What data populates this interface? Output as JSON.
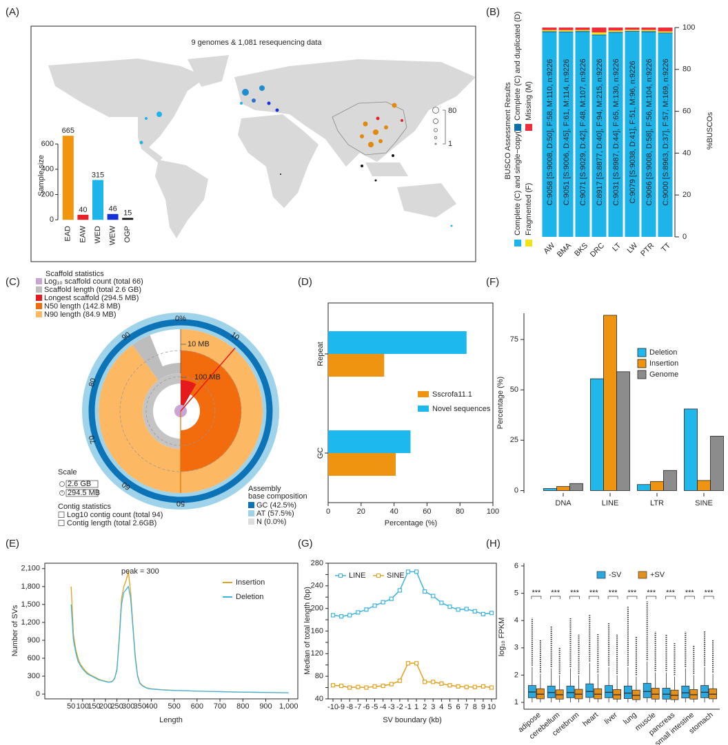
{
  "chart_data": [
    {
      "type": "map",
      "label": "(A)",
      "title": "9 genomes & 1,081 resequencing data",
      "size_legend": [
        80,
        1
      ]
    },
    {
      "type": "bar",
      "ylabel": "Sample size",
      "categories": [
        "EAD",
        "EAW",
        "WED",
        "WEW",
        "OGP"
      ],
      "values": [
        665,
        40,
        315,
        46,
        15
      ],
      "colors": [
        "#f0950c",
        "#e8202a",
        "#1db4ea",
        "#1432d8",
        "#111111"
      ],
      "ylim": [
        -15,
        715
      ],
      "yticks": [
        0,
        200,
        400,
        600
      ]
    },
    {
      "type": "stacked_bar",
      "label": "(B)",
      "legend_title": "BUSCO Assessment Results",
      "ylabel": "%BUSCOs",
      "categories": [
        "AW",
        "BMA",
        "BKS",
        "DRC",
        "LT",
        "LW",
        "PTR",
        "TT"
      ],
      "series": [
        {
          "name": "Complete (C) and single−copy(S)",
          "color": "#1db4ea",
          "values": [
            97.64,
            97.62,
            97.86,
            96.22,
            97.41,
            97.96,
            97.64,
            97.15
          ]
        },
        {
          "name": "Complete (C) and duplicated (D)",
          "color": "#0b6fa8",
          "values": [
            0.54,
            0.49,
            0.46,
            0.43,
            0.48,
            0.44,
            0.63,
            0.4
          ]
        },
        {
          "name": "Fragmented (F)",
          "color": "#f2e21a",
          "values": [
            0.63,
            0.66,
            0.52,
            1.02,
            0.7,
            0.55,
            0.61,
            0.62
          ]
        },
        {
          "name": "Missing (M)",
          "color": "#ee2c3a",
          "values": [
            1.19,
            1.24,
            1.16,
            2.33,
            1.41,
            1.04,
            1.13,
            1.83
          ]
        }
      ],
      "bar_labels": [
        "C:9058 [S:9008, D:50], F:58, M:110, n:9226",
        "C:9051 [S:9006, D:45], F:61, M:114, n:9226",
        "C:9071 [S:9029, D:42], F:48, M:107, n:9226",
        "C:8917 [S:8877, D:40], F:94, M:215, n:9226",
        "C:9031 [S:8987, D:44], F:65, M:130, n:9226",
        "C:9079 [S:9038, D:41], F:51, M:96, n:9226",
        "C:9066 [S:9008, D:58], F:56, M:104, n:9226",
        "C:9000 [S:8963, D:37], F:57, M:169, n:9226"
      ],
      "ylim": [
        0,
        100
      ],
      "yticks": [
        0,
        20,
        40,
        60,
        80,
        100
      ]
    },
    {
      "type": "snail",
      "label": "(C)",
      "legend_title": "Scaffold statistics",
      "legend": [
        {
          "name": "Log₁₀ scaffold count (total 66)",
          "color": "#c9a5d6"
        },
        {
          "name": "Scaffold length (total 2.6 GB)",
          "color": "#bdbdbd"
        },
        {
          "name": "Longest scaffold (294.5 MB)",
          "color": "#e41a1c"
        },
        {
          "name": "N50 length (142.8 MB)",
          "color": "#f26c0d"
        },
        {
          "name": "N90 length (84.9 MB)",
          "color": "#fdb863"
        }
      ],
      "scale_title": "Scale",
      "scale": [
        "2.6 GB",
        "294.5 MB"
      ],
      "contig_title": "Contig statistics",
      "contig": [
        "Log10 contig count (total 94)",
        "Contig length (total 2.6GB)"
      ],
      "composition_title": [
        "Assembly",
        "base composition"
      ],
      "composition": [
        {
          "name": "GC (42.5%)",
          "color": "#0b73b6"
        },
        {
          "name": "AT (57.5%)",
          "color": "#9fd3ea"
        },
        {
          "name": "N (0.0%)",
          "color": "#dddddd"
        }
      ],
      "radial_labels": [
        "10 MB",
        "100 MB"
      ],
      "ring_ticks": [
        {
          "value": 0,
          "label": "0%"
        },
        10,
        50,
        60,
        70,
        80,
        90
      ]
    },
    {
      "type": "hbar",
      "label": "(D)",
      "xlabel": "Percentage (%)",
      "categories": [
        "Repeat",
        "GC"
      ],
      "series": [
        {
          "name": "Sscrofa11.1",
          "color": "#ee9410",
          "values": [
            34,
            41
          ]
        },
        {
          "name": "Novel sequences",
          "color": "#1db8ee",
          "values": [
            84,
            50
          ]
        }
      ],
      "xlim": [
        0,
        100
      ],
      "xticks": [
        0,
        20,
        40,
        60,
        80,
        100
      ]
    },
    {
      "type": "grouped_bar",
      "label": "(F)",
      "ylabel": "Percentage (%)",
      "categories": [
        "DNA",
        "LINE",
        "LTR",
        "SINE"
      ],
      "series": [
        {
          "name": "Deletion",
          "color": "#22b7ea",
          "values": [
            1,
            55.5,
            3,
            40.5
          ]
        },
        {
          "name": "Insertion",
          "color": "#ee9410",
          "values": [
            2,
            87,
            4.5,
            5
          ]
        },
        {
          "name": "Genome",
          "color": "#8c8c8c",
          "values": [
            3.5,
            59,
            10,
            27
          ]
        }
      ],
      "ylim": [
        -1.2,
        88
      ],
      "yticks": [
        0,
        25,
        50,
        75
      ]
    },
    {
      "type": "line",
      "label": "(E)",
      "xlabel": "Length",
      "ylabel": "Number of SVs",
      "annotation": "peak = 300",
      "x": [
        50,
        60,
        70,
        80,
        90,
        100,
        110,
        120,
        130,
        140,
        150,
        160,
        170,
        180,
        190,
        200,
        210,
        220,
        230,
        240,
        250,
        260,
        270,
        280,
        290,
        300,
        310,
        320,
        330,
        340,
        350,
        360,
        370,
        380,
        390,
        400,
        450,
        500,
        550,
        600,
        650,
        700,
        750,
        800,
        850,
        900,
        950,
        1000
      ],
      "series": [
        {
          "name": "Insertion",
          "color": "#e3a01c",
          "values": [
            1800,
            1000,
            750,
            600,
            500,
            450,
            400,
            360,
            330,
            310,
            290,
            270,
            250,
            235,
            225,
            215,
            205,
            205,
            215,
            270,
            420,
            950,
            1600,
            1800,
            1900,
            2050,
            1700,
            1150,
            650,
            320,
            190,
            150,
            125,
            105,
            95,
            88,
            72,
            62,
            56,
            50,
            45,
            42,
            36,
            33,
            30,
            27,
            24,
            22
          ]
        },
        {
          "name": "Deletion",
          "color": "#3bb3e0",
          "values": [
            1500,
            900,
            700,
            550,
            480,
            420,
            380,
            340,
            320,
            300,
            280,
            260,
            240,
            230,
            220,
            210,
            200,
            200,
            210,
            260,
            400,
            900,
            1500,
            1700,
            1750,
            1800,
            1600,
            1100,
            600,
            300,
            180,
            140,
            120,
            100,
            90,
            85,
            70,
            60,
            55,
            50,
            45,
            40,
            35,
            32,
            30,
            28,
            25,
            22
          ]
        }
      ],
      "xlim": [
        -65,
        1040
      ],
      "xticks": [
        50,
        100,
        150,
        200,
        250,
        300,
        350,
        400,
        500,
        600,
        700,
        800,
        900,
        {
          "value": 1000,
          "label": "1,000"
        }
      ],
      "ylim": [
        -80,
        2190
      ],
      "yticks": [
        0,
        300,
        600,
        900,
        {
          "value": 1200,
          "label": "1,200"
        },
        {
          "value": 1500,
          "label": "1,500"
        },
        {
          "value": 1800,
          "label": "1,800"
        },
        {
          "value": 2100,
          "label": "2,100"
        }
      ]
    },
    {
      "type": "marker_line",
      "label": "(G)",
      "xlabel": "SV boundary (kb)",
      "ylabel": "Median of total length (bp)",
      "categories": [
        "-10",
        "-9",
        "-8",
        "-7",
        "-6",
        "-5",
        "-4",
        "-3",
        "-2",
        "-1",
        "1",
        "2",
        "3",
        "4",
        "5",
        "6",
        "7",
        "8",
        "9",
        "10"
      ],
      "series": [
        {
          "name": "LINE",
          "color": "#3bb3e0",
          "values": [
            188,
            186,
            188,
            193,
            198,
            205,
            211,
            217,
            232,
            265,
            265,
            230,
            222,
            210,
            203,
            198,
            199,
            195,
            190,
            192
          ]
        },
        {
          "name": "SINE",
          "color": "#e3a01c",
          "values": [
            64,
            63,
            60,
            61,
            60,
            62,
            63,
            66,
            72,
            103,
            103,
            70,
            70,
            67,
            64,
            62,
            61,
            61,
            62,
            60
          ]
        }
      ],
      "ylim": [
        40,
        280
      ],
      "yticks": [
        40,
        60,
        80,
        100,
        120,
        140,
        160,
        180,
        200,
        220,
        240,
        260,
        280
      ]
    },
    {
      "type": "box",
      "label": "(H)",
      "ylabel": "log₁₀ FPKM",
      "categories": [
        "adipose",
        "cerebellum",
        "cerebrum",
        "heart",
        "liver",
        "lung",
        "muscle",
        "pancreas",
        "small intestine",
        "stomach"
      ],
      "significance": [
        "***",
        "***",
        "***",
        "***",
        "***",
        "***",
        "***",
        "***",
        "***",
        "***"
      ],
      "series": [
        {
          "name": "-SV",
          "color": "#2aa9e0",
          "whislo": [
            1,
            1,
            1,
            1,
            1,
            1,
            1,
            1,
            1,
            1
          ],
          "q1": [
            1.17,
            1.17,
            1.17,
            1.18,
            1.17,
            1.14,
            1.17,
            1.12,
            1.16,
            1.17
          ],
          "median": [
            1.38,
            1.36,
            1.36,
            1.4,
            1.37,
            1.34,
            1.4,
            1.3,
            1.35,
            1.37
          ],
          "q3": [
            1.62,
            1.6,
            1.6,
            1.68,
            1.62,
            1.6,
            1.7,
            1.52,
            1.6,
            1.62
          ],
          "whishi": [
            2.3,
            2.25,
            2.25,
            2.45,
            2.3,
            2.3,
            2.5,
            2.1,
            2.25,
            2.3
          ],
          "max": [
            4.1,
            3.8,
            4.1,
            4.2,
            3.9,
            4.5,
            4.7,
            3.5,
            3.6,
            3.6
          ]
        },
        {
          "name": "+SV",
          "color": "#e3901c",
          "whislo": [
            1,
            1,
            1,
            1,
            1,
            1,
            1,
            1,
            1,
            1
          ],
          "q1": [
            1.13,
            1.12,
            1.13,
            1.13,
            1.12,
            1.1,
            1.12,
            1.1,
            1.12,
            1.13
          ],
          "median": [
            1.3,
            1.28,
            1.3,
            1.3,
            1.28,
            1.26,
            1.3,
            1.26,
            1.28,
            1.3
          ],
          "q3": [
            1.5,
            1.46,
            1.48,
            1.5,
            1.47,
            1.45,
            1.52,
            1.45,
            1.47,
            1.5
          ],
          "whishi": [
            2.05,
            2,
            2,
            2.05,
            2,
            1.95,
            2.1,
            1.95,
            2,
            2.05
          ],
          "max": [
            3.3,
            3,
            3.5,
            3.5,
            3.5,
            3.4,
            3.6,
            3.2,
            3.1,
            3.3
          ]
        }
      ],
      "ylim": [
        0.75,
        6.1
      ],
      "yticks": [
        1,
        2,
        3,
        4,
        5,
        6
      ]
    }
  ]
}
